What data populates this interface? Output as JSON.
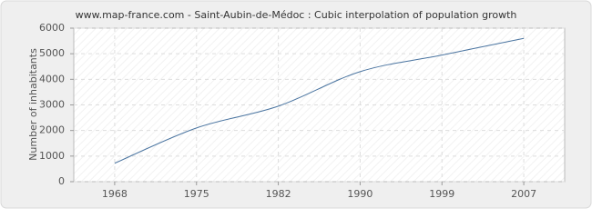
{
  "chart_data": {
    "type": "line",
    "title": "www.map-france.com - Saint-Aubin-de-Médoc : Cubic interpolation of population growth",
    "y_label": "Number of inhabitants",
    "categories": [
      "1968",
      "1975",
      "1982",
      "1990",
      "1999",
      "2007"
    ],
    "values": [
      720,
      2100,
      2950,
      4300,
      4950,
      5600
    ],
    "color": "#4a74a0",
    "ylim": [
      0,
      6000
    ],
    "yticks": [
      0,
      1000,
      2000,
      3000,
      4000,
      5000,
      6000
    ],
    "grid": true
  }
}
